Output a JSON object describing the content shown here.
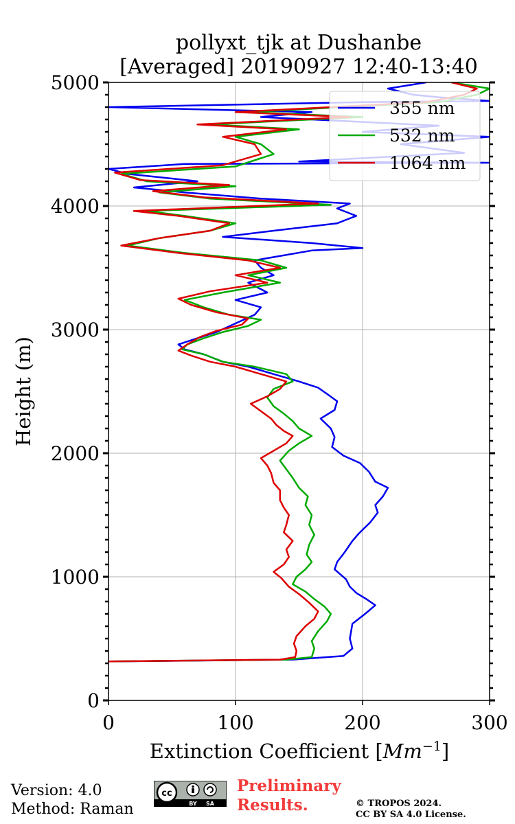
{
  "chart_data": {
    "type": "line",
    "title_line1": "pollyxt_tjk at Dushanbe",
    "title_line2": "[Averaged] 20190927 12:40-13:40",
    "xlabel": "Extinction Coefficient [",
    "xlabel_unit": "Mm",
    "xlabel_exp": "−1",
    "xlabel_close": "]",
    "ylabel": "Height (m)",
    "xlim": [
      0,
      300
    ],
    "ylim": [
      0,
      5000
    ],
    "xticks": [
      0,
      100,
      200,
      300
    ],
    "yticks": [
      0,
      1000,
      2000,
      3000,
      4000,
      5000
    ],
    "grid": true,
    "legend_position": "top-right",
    "series": [
      {
        "name": "355 nm",
        "color": "#0000ee",
        "points": [
          [
            0,
            315
          ],
          [
            145,
            330
          ],
          [
            185,
            360
          ],
          [
            192,
            420
          ],
          [
            190,
            500
          ],
          [
            192,
            620
          ],
          [
            202,
            700
          ],
          [
            210,
            770
          ],
          [
            203,
            820
          ],
          [
            195,
            870
          ],
          [
            190,
            920
          ],
          [
            187,
            980
          ],
          [
            178,
            1060
          ],
          [
            180,
            1120
          ],
          [
            186,
            1200
          ],
          [
            192,
            1290
          ],
          [
            197,
            1350
          ],
          [
            206,
            1440
          ],
          [
            212,
            1520
          ],
          [
            210,
            1580
          ],
          [
            216,
            1650
          ],
          [
            220,
            1720
          ],
          [
            210,
            1770
          ],
          [
            205,
            1850
          ],
          [
            198,
            1920
          ],
          [
            185,
            1980
          ],
          [
            176,
            2050
          ],
          [
            178,
            2130
          ],
          [
            175,
            2200
          ],
          [
            167,
            2280
          ],
          [
            178,
            2350
          ],
          [
            180,
            2420
          ],
          [
            172,
            2480
          ],
          [
            165,
            2530
          ],
          [
            150,
            2580
          ],
          [
            130,
            2640
          ],
          [
            110,
            2700
          ],
          [
            90,
            2740
          ],
          [
            75,
            2800
          ],
          [
            60,
            2840
          ],
          [
            55,
            2880
          ],
          [
            70,
            2930
          ],
          [
            85,
            2980
          ],
          [
            100,
            3050
          ],
          [
            115,
            3120
          ],
          [
            120,
            3180
          ],
          [
            100,
            3240
          ],
          [
            125,
            3300
          ],
          [
            110,
            3380
          ],
          [
            130,
            3440
          ],
          [
            120,
            3500
          ],
          [
            115,
            3560
          ],
          [
            160,
            3640
          ],
          [
            200,
            3660
          ],
          [
            160,
            3700
          ],
          [
            90,
            3750
          ],
          [
            130,
            3800
          ],
          [
            180,
            3860
          ],
          [
            195,
            3920
          ],
          [
            180,
            3980
          ],
          [
            190,
            4020
          ],
          [
            120,
            4060
          ],
          [
            60,
            4110
          ],
          [
            20,
            4150
          ],
          [
            70,
            4200
          ],
          [
            15,
            4260
          ],
          [
            0,
            4300
          ],
          [
            60,
            4340
          ],
          [
            300,
            4350
          ],
          [
            150,
            4360
          ],
          [
            280,
            4430
          ],
          [
            230,
            4500
          ],
          [
            300,
            4560
          ],
          [
            200,
            4600
          ],
          [
            260,
            4650
          ],
          [
            120,
            4720
          ],
          [
            160,
            4760
          ],
          [
            0,
            4800
          ],
          [
            200,
            4840
          ],
          [
            300,
            4850
          ],
          [
            260,
            4880
          ],
          [
            240,
            4900
          ],
          [
            220,
            4950
          ],
          [
            250,
            5000
          ]
        ]
      },
      {
        "name": "532 nm",
        "color": "#00aa00",
        "points": [
          [
            0,
            315
          ],
          [
            140,
            330
          ],
          [
            160,
            350
          ],
          [
            162,
            420
          ],
          [
            160,
            480
          ],
          [
            165,
            560
          ],
          [
            172,
            640
          ],
          [
            175,
            700
          ],
          [
            170,
            760
          ],
          [
            162,
            820
          ],
          [
            155,
            880
          ],
          [
            145,
            940
          ],
          [
            148,
            1000
          ],
          [
            155,
            1060
          ],
          [
            160,
            1120
          ],
          [
            156,
            1180
          ],
          [
            158,
            1260
          ],
          [
            162,
            1340
          ],
          [
            158,
            1420
          ],
          [
            160,
            1500
          ],
          [
            155,
            1580
          ],
          [
            157,
            1650
          ],
          [
            150,
            1720
          ],
          [
            145,
            1800
          ],
          [
            140,
            1870
          ],
          [
            135,
            1940
          ],
          [
            142,
            2020
          ],
          [
            150,
            2080
          ],
          [
            160,
            2140
          ],
          [
            150,
            2200
          ],
          [
            145,
            2260
          ],
          [
            138,
            2320
          ],
          [
            130,
            2380
          ],
          [
            125,
            2450
          ],
          [
            130,
            2520
          ],
          [
            145,
            2580
          ],
          [
            140,
            2640
          ],
          [
            115,
            2700
          ],
          [
            90,
            2740
          ],
          [
            75,
            2800
          ],
          [
            58,
            2840
          ],
          [
            62,
            2880
          ],
          [
            75,
            2930
          ],
          [
            90,
            2980
          ],
          [
            110,
            3030
          ],
          [
            120,
            3080
          ],
          [
            95,
            3120
          ],
          [
            75,
            3180
          ],
          [
            60,
            3240
          ],
          [
            90,
            3300
          ],
          [
            135,
            3380
          ],
          [
            110,
            3440
          ],
          [
            140,
            3500
          ],
          [
            120,
            3560
          ],
          [
            60,
            3620
          ],
          [
            15,
            3680
          ],
          [
            40,
            3740
          ],
          [
            80,
            3800
          ],
          [
            100,
            3860
          ],
          [
            60,
            3920
          ],
          [
            30,
            3960
          ],
          [
            175,
            4010
          ],
          [
            80,
            4060
          ],
          [
            40,
            4110
          ],
          [
            100,
            4160
          ],
          [
            30,
            4200
          ],
          [
            10,
            4260
          ],
          [
            100,
            4320
          ],
          [
            130,
            4420
          ],
          [
            120,
            4500
          ],
          [
            100,
            4560
          ],
          [
            150,
            4620
          ],
          [
            80,
            4660
          ],
          [
            200,
            4720
          ],
          [
            110,
            4760
          ],
          [
            260,
            4840
          ],
          [
            290,
            4900
          ],
          [
            300,
            4950
          ],
          [
            270,
            5000
          ]
        ]
      },
      {
        "name": "1064 nm",
        "color": "#dd0000",
        "points": [
          [
            0,
            315
          ],
          [
            135,
            330
          ],
          [
            147,
            350
          ],
          [
            148,
            400
          ],
          [
            146,
            460
          ],
          [
            148,
            520
          ],
          [
            155,
            600
          ],
          [
            162,
            660
          ],
          [
            165,
            720
          ],
          [
            158,
            790
          ],
          [
            150,
            860
          ],
          [
            142,
            920
          ],
          [
            136,
            990
          ],
          [
            130,
            1040
          ],
          [
            138,
            1100
          ],
          [
            142,
            1160
          ],
          [
            140,
            1220
          ],
          [
            145,
            1290
          ],
          [
            138,
            1360
          ],
          [
            140,
            1420
          ],
          [
            142,
            1500
          ],
          [
            138,
            1560
          ],
          [
            135,
            1620
          ],
          [
            135,
            1700
          ],
          [
            130,
            1760
          ],
          [
            128,
            1840
          ],
          [
            125,
            1900
          ],
          [
            120,
            1960
          ],
          [
            130,
            2020
          ],
          [
            140,
            2080
          ],
          [
            145,
            2140
          ],
          [
            138,
            2180
          ],
          [
            132,
            2230
          ],
          [
            128,
            2280
          ],
          [
            120,
            2340
          ],
          [
            112,
            2400
          ],
          [
            125,
            2460
          ],
          [
            135,
            2520
          ],
          [
            140,
            2580
          ],
          [
            120,
            2640
          ],
          [
            100,
            2700
          ],
          [
            80,
            2740
          ],
          [
            65,
            2790
          ],
          [
            55,
            2830
          ],
          [
            62,
            2880
          ],
          [
            72,
            2940
          ],
          [
            85,
            2990
          ],
          [
            105,
            3040
          ],
          [
            110,
            3090
          ],
          [
            85,
            3140
          ],
          [
            65,
            3200
          ],
          [
            55,
            3250
          ],
          [
            80,
            3310
          ],
          [
            125,
            3380
          ],
          [
            100,
            3440
          ],
          [
            135,
            3500
          ],
          [
            110,
            3560
          ],
          [
            55,
            3620
          ],
          [
            10,
            3680
          ],
          [
            40,
            3740
          ],
          [
            80,
            3800
          ],
          [
            95,
            3860
          ],
          [
            55,
            3920
          ],
          [
            20,
            3960
          ],
          [
            165,
            4020
          ],
          [
            75,
            4070
          ],
          [
            35,
            4120
          ],
          [
            95,
            4170
          ],
          [
            25,
            4210
          ],
          [
            5,
            4270
          ],
          [
            90,
            4330
          ],
          [
            120,
            4420
          ],
          [
            115,
            4500
          ],
          [
            90,
            4560
          ],
          [
            140,
            4620
          ],
          [
            70,
            4660
          ],
          [
            190,
            4720
          ],
          [
            100,
            4760
          ],
          [
            250,
            4840
          ],
          [
            280,
            4900
          ],
          [
            290,
            4950
          ],
          [
            270,
            5000
          ]
        ]
      }
    ]
  },
  "footer": {
    "version": "Version: 4.0",
    "method": "Method: Raman",
    "badge_cc": "cc",
    "badge_by": "BY",
    "badge_sa": "SA",
    "preliminary_line1": "Preliminary",
    "preliminary_line2": "Results.",
    "copyright_line1": "© TROPOS 2024.",
    "copyright_line2": "CC BY SA 4.0 License."
  }
}
